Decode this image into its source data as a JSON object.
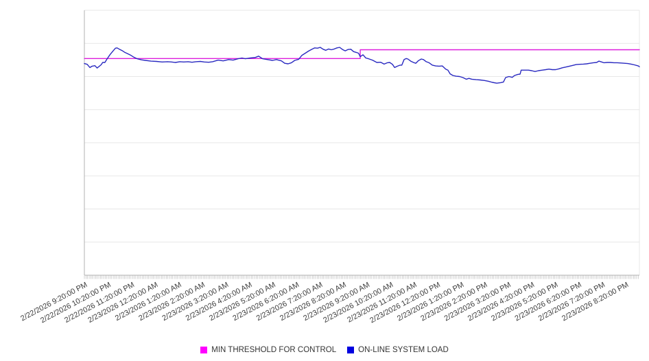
{
  "chart_data": {
    "type": "line",
    "title": "",
    "legend_position": "bottom",
    "x_axis": {
      "tick_labels": [
        "2/22/2026 9:20:00 PM",
        "2/22/2026 10:20:00 PM",
        "2/22/2026 11:20:00 PM",
        "2/23/2026 12:20:00 AM",
        "2/23/2026 1:20:00 AM",
        "2/23/2026 2:20:00 AM",
        "2/23/2026 3:20:00 AM",
        "2/23/2026 4:20:00 AM",
        "2/23/2026 5:20:00 AM",
        "2/23/2026 6:20:00 AM",
        "2/23/2026 7:20:00 AM",
        "2/23/2026 8:20:00 AM",
        "2/23/2026 9:20:00 AM",
        "2/23/2026 10:20:00 AM",
        "2/23/2026 11:20:00 AM",
        "2/23/2026 12:20:00 PM",
        "2/23/2026 1:20:00 PM",
        "2/23/2026 2:20:00 PM",
        "2/23/2026 3:20:00 PM",
        "2/23/2026 4:20:00 PM",
        "2/23/2026 5:20:00 PM",
        "2/23/2026 6:20:00 PM",
        "2/23/2026 7:20:00 PM",
        "2/23/2026 8:20:00 PM"
      ],
      "minor_ticks_visible": true
    },
    "y_axis": {
      "tick_labels_visible": false,
      "gridline_count": 8,
      "ylim": [
        0,
        100
      ]
    },
    "series": [
      {
        "name": "MIN THRESHOLD FOR CONTROL",
        "color": "#dd1edd",
        "legend_color": "#ff00ff",
        "points": [
          [
            0.0,
            81.8
          ],
          [
            0.497,
            81.8
          ],
          [
            0.497,
            85.1
          ],
          [
            1.0,
            85.1
          ]
        ]
      },
      {
        "name": "ON-LINE SYSTEM LOAD",
        "color": "#2828c0",
        "legend_color": "#0000e0",
        "points": [
          [
            0.0,
            79.9
          ],
          [
            0.005,
            79.6
          ],
          [
            0.01,
            78.4
          ],
          [
            0.014,
            78.9
          ],
          [
            0.019,
            79.1
          ],
          [
            0.023,
            78.2
          ],
          [
            0.03,
            79.4
          ],
          [
            0.033,
            80.3
          ],
          [
            0.037,
            80.3
          ],
          [
            0.041,
            81.7
          ],
          [
            0.046,
            83.2
          ],
          [
            0.051,
            84.5
          ],
          [
            0.056,
            85.7
          ],
          [
            0.059,
            85.8
          ],
          [
            0.063,
            85.3
          ],
          [
            0.068,
            84.8
          ],
          [
            0.073,
            84.1
          ],
          [
            0.078,
            83.6
          ],
          [
            0.083,
            83.1
          ],
          [
            0.089,
            82.3
          ],
          [
            0.095,
            81.7
          ],
          [
            0.103,
            81.3
          ],
          [
            0.11,
            81.1
          ],
          [
            0.12,
            80.8
          ],
          [
            0.13,
            80.7
          ],
          [
            0.14,
            80.5
          ],
          [
            0.15,
            80.6
          ],
          [
            0.157,
            80.5
          ],
          [
            0.164,
            80.3
          ],
          [
            0.172,
            80.6
          ],
          [
            0.179,
            80.5
          ],
          [
            0.187,
            80.6
          ],
          [
            0.194,
            80.4
          ],
          [
            0.201,
            80.6
          ],
          [
            0.209,
            80.7
          ],
          [
            0.216,
            80.5
          ],
          [
            0.224,
            80.4
          ],
          [
            0.231,
            80.6
          ],
          [
            0.241,
            81.2
          ],
          [
            0.25,
            80.9
          ],
          [
            0.26,
            81.4
          ],
          [
            0.268,
            81.2
          ],
          [
            0.277,
            81.7
          ],
          [
            0.284,
            82.0
          ],
          [
            0.29,
            81.7
          ],
          [
            0.299,
            82.0
          ],
          [
            0.308,
            82.2
          ],
          [
            0.314,
            82.7
          ],
          [
            0.321,
            81.7
          ],
          [
            0.33,
            81.4
          ],
          [
            0.339,
            81.1
          ],
          [
            0.346,
            81.4
          ],
          [
            0.355,
            80.9
          ],
          [
            0.361,
            80.0
          ],
          [
            0.367,
            79.8
          ],
          [
            0.373,
            80.2
          ],
          [
            0.379,
            81.1
          ],
          [
            0.386,
            81.5
          ],
          [
            0.392,
            83.0
          ],
          [
            0.398,
            83.8
          ],
          [
            0.404,
            84.6
          ],
          [
            0.41,
            85.3
          ],
          [
            0.415,
            85.8
          ],
          [
            0.42,
            85.7
          ],
          [
            0.425,
            86.0
          ],
          [
            0.43,
            85.3
          ],
          [
            0.435,
            84.9
          ],
          [
            0.44,
            85.4
          ],
          [
            0.445,
            85.1
          ],
          [
            0.45,
            85.4
          ],
          [
            0.455,
            85.8
          ],
          [
            0.46,
            86.0
          ],
          [
            0.465,
            85.2
          ],
          [
            0.47,
            84.7
          ],
          [
            0.475,
            85.2
          ],
          [
            0.48,
            85.3
          ],
          [
            0.485,
            84.4
          ],
          [
            0.49,
            84.1
          ],
          [
            0.494,
            83.8
          ],
          [
            0.497,
            82.5
          ],
          [
            0.502,
            83.2
          ],
          [
            0.507,
            82.0
          ],
          [
            0.512,
            81.7
          ],
          [
            0.519,
            81.2
          ],
          [
            0.527,
            80.3
          ],
          [
            0.534,
            80.4
          ],
          [
            0.54,
            79.7
          ],
          [
            0.546,
            80.2
          ],
          [
            0.55,
            80.3
          ],
          [
            0.555,
            79.6
          ],
          [
            0.559,
            78.4
          ],
          [
            0.564,
            78.9
          ],
          [
            0.569,
            79.3
          ],
          [
            0.572,
            79.3
          ],
          [
            0.576,
            81.4
          ],
          [
            0.58,
            81.8
          ],
          [
            0.583,
            81.6
          ],
          [
            0.588,
            80.8
          ],
          [
            0.593,
            80.3
          ],
          [
            0.597,
            80.0
          ],
          [
            0.602,
            81.0
          ],
          [
            0.607,
            81.6
          ],
          [
            0.611,
            81.4
          ],
          [
            0.616,
            80.6
          ],
          [
            0.621,
            80.2
          ],
          [
            0.627,
            79.3
          ],
          [
            0.633,
            79.0
          ],
          [
            0.639,
            78.9
          ],
          [
            0.645,
            79.0
          ],
          [
            0.651,
            77.8
          ],
          [
            0.655,
            77.4
          ],
          [
            0.659,
            76.0
          ],
          [
            0.664,
            75.4
          ],
          [
            0.67,
            75.1
          ],
          [
            0.676,
            75.0
          ],
          [
            0.682,
            74.6
          ],
          [
            0.688,
            74.0
          ],
          [
            0.693,
            74.3
          ],
          [
            0.698,
            74.0
          ],
          [
            0.706,
            73.8
          ],
          [
            0.713,
            73.7
          ],
          [
            0.721,
            73.5
          ],
          [
            0.728,
            73.2
          ],
          [
            0.735,
            72.8
          ],
          [
            0.743,
            72.5
          ],
          [
            0.75,
            72.7
          ],
          [
            0.755,
            72.9
          ],
          [
            0.759,
            74.6
          ],
          [
            0.765,
            75.0
          ],
          [
            0.771,
            74.7
          ],
          [
            0.775,
            75.4
          ],
          [
            0.781,
            75.8
          ],
          [
            0.785,
            75.9
          ],
          [
            0.787,
            77.4
          ],
          [
            0.794,
            77.4
          ],
          [
            0.8,
            77.4
          ],
          [
            0.806,
            77.2
          ],
          [
            0.812,
            76.9
          ],
          [
            0.818,
            77.2
          ],
          [
            0.825,
            77.4
          ],
          [
            0.831,
            77.6
          ],
          [
            0.837,
            77.8
          ],
          [
            0.843,
            77.6
          ],
          [
            0.849,
            77.6
          ],
          [
            0.855,
            77.9
          ],
          [
            0.861,
            78.3
          ],
          [
            0.868,
            78.6
          ],
          [
            0.874,
            78.9
          ],
          [
            0.88,
            79.2
          ],
          [
            0.886,
            79.5
          ],
          [
            0.892,
            79.6
          ],
          [
            0.899,
            79.7
          ],
          [
            0.905,
            79.8
          ],
          [
            0.911,
            80.0
          ],
          [
            0.917,
            80.2
          ],
          [
            0.923,
            80.3
          ],
          [
            0.927,
            80.8
          ],
          [
            0.932,
            80.5
          ],
          [
            0.936,
            80.2
          ],
          [
            0.942,
            80.3
          ],
          [
            0.948,
            80.3
          ],
          [
            0.954,
            80.2
          ],
          [
            0.96,
            80.2
          ],
          [
            0.967,
            80.1
          ],
          [
            0.973,
            80.0
          ],
          [
            0.979,
            79.9
          ],
          [
            0.985,
            79.7
          ],
          [
            0.991,
            79.4
          ],
          [
            0.998,
            79.0
          ],
          [
            1.0,
            78.7
          ]
        ]
      }
    ]
  }
}
